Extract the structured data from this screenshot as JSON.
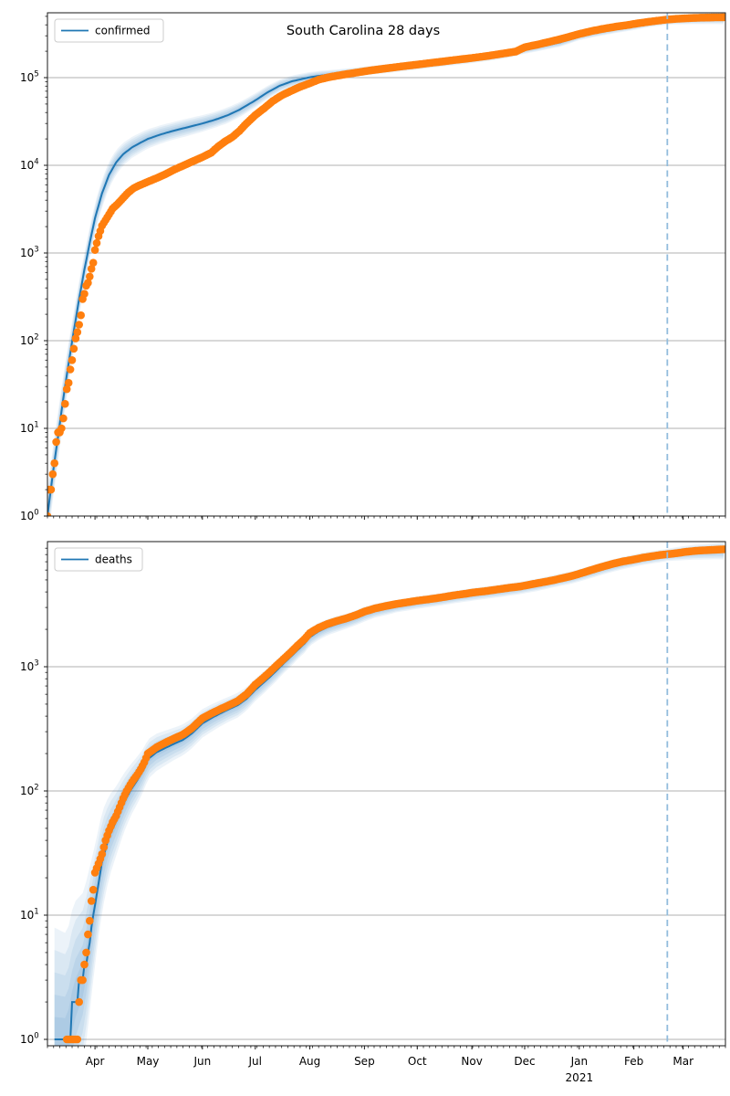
{
  "title": "South Carolina 28 days",
  "colors": {
    "model_line": "#1f77b4",
    "band_fill": "#1f77b4",
    "observed_dots": "#ff7f0e",
    "dashed_forecast_line": "#92bcdd",
    "gridline": "#b0b0b0",
    "spine": "#1a1a1a",
    "legend_border": "#cccccc"
  },
  "x_axis": {
    "day_zero": "2020-03-01",
    "range_days": [
      4,
      389
    ],
    "forecast_start": "2021-02-20",
    "forecast_horizon_days": 28,
    "year_sublabel": "2021",
    "ticks": [
      {
        "date": "2020-04-01",
        "label": "Apr"
      },
      {
        "date": "2020-05-01",
        "label": "May"
      },
      {
        "date": "2020-06-01",
        "label": "Jun"
      },
      {
        "date": "2020-07-01",
        "label": "Jul"
      },
      {
        "date": "2020-08-01",
        "label": "Aug"
      },
      {
        "date": "2020-09-01",
        "label": "Sep"
      },
      {
        "date": "2020-10-01",
        "label": "Oct"
      },
      {
        "date": "2020-11-01",
        "label": "Nov"
      },
      {
        "date": "2020-12-01",
        "label": "Dec"
      },
      {
        "date": "2021-01-01",
        "label": "Jan",
        "sublabel": "2021"
      },
      {
        "date": "2021-02-01",
        "label": "Feb"
      },
      {
        "date": "2021-03-01",
        "label": "Mar"
      }
    ]
  },
  "chart_data": [
    {
      "name": "confirmed",
      "legend": "confirmed",
      "type": "line+band+scatter",
      "yscale": "log",
      "ylim": [
        1,
        548000
      ],
      "y_ticks_exponents": [
        0,
        1,
        2,
        3,
        4,
        5
      ],
      "spread_unit": "log10 half-width of outer uncertainty band",
      "model_points": [
        [
          4,
          1,
          0.3
        ],
        [
          7,
          3,
          0.3
        ],
        [
          10,
          8,
          0.28
        ],
        [
          13,
          22,
          0.26
        ],
        [
          16,
          55,
          0.24
        ],
        [
          19,
          130,
          0.22
        ],
        [
          22,
          300,
          0.2
        ],
        [
          25,
          650,
          0.19
        ],
        [
          28,
          1300,
          0.18
        ],
        [
          31,
          2500,
          0.17
        ],
        [
          35,
          4800,
          0.16
        ],
        [
          39,
          7800,
          0.15
        ],
        [
          43,
          10800,
          0.14
        ],
        [
          47,
          13400,
          0.13
        ],
        [
          52,
          16000,
          0.12
        ],
        [
          57,
          18200,
          0.115
        ],
        [
          61,
          20000,
          0.11
        ],
        [
          68,
          22400,
          0.105
        ],
        [
          75,
          24600,
          0.1
        ],
        [
          82,
          26700,
          0.1
        ],
        [
          92,
          30000,
          0.095
        ],
        [
          99,
          33000,
          0.09
        ],
        [
          106,
          37000,
          0.09
        ],
        [
          113,
          43000,
          0.085
        ],
        [
          122,
          55000,
          0.08
        ],
        [
          129,
          68000,
          0.075
        ],
        [
          136,
          81000,
          0.07
        ],
        [
          143,
          91000,
          0.065
        ],
        [
          153,
          101000,
          0.06
        ],
        [
          160,
          106000,
          0.055
        ],
        [
          167,
          110000,
          0.05
        ],
        [
          174,
          113500,
          0.05
        ],
        [
          184,
          119000,
          0.05
        ],
        [
          194,
          125000,
          0.05
        ],
        [
          204,
          131500,
          0.05
        ],
        [
          214,
          139000,
          0.05
        ],
        [
          224,
          146500,
          0.05
        ],
        [
          234,
          154500,
          0.05
        ],
        [
          245,
          164000,
          0.05
        ],
        [
          255,
          174500,
          0.05
        ],
        [
          265,
          187500,
          0.05
        ],
        [
          275,
          210000,
          0.05
        ],
        [
          285,
          230000,
          0.05
        ],
        [
          295,
          252000,
          0.05
        ],
        [
          306,
          300000,
          0.05
        ],
        [
          316,
          330000,
          0.05
        ],
        [
          326,
          360000,
          0.05
        ],
        [
          337,
          392000,
          0.05
        ],
        [
          346,
          424000,
          0.05
        ],
        [
          356,
          450000,
          0.05
        ],
        [
          363,
          460000,
          0.055
        ],
        [
          371,
          468000,
          0.06
        ],
        [
          380,
          474000,
          0.065
        ],
        [
          389,
          478000,
          0.07
        ]
      ],
      "observed_points": [
        [
          4,
          1
        ],
        [
          5,
          2
        ],
        [
          6,
          2
        ],
        [
          7,
          3
        ],
        [
          8,
          4
        ],
        [
          9,
          7
        ],
        [
          10,
          9
        ],
        [
          11,
          9
        ],
        [
          12,
          10
        ],
        [
          13,
          13
        ],
        [
          14,
          19
        ],
        [
          15,
          28
        ],
        [
          16,
          33
        ],
        [
          17,
          47
        ],
        [
          18,
          60
        ],
        [
          19,
          81
        ],
        [
          20,
          106
        ],
        [
          21,
          125
        ],
        [
          22,
          152
        ],
        [
          23,
          195
        ],
        [
          24,
          298
        ],
        [
          25,
          342
        ],
        [
          26,
          424
        ],
        [
          27,
          456
        ],
        [
          28,
          539
        ],
        [
          29,
          660
        ],
        [
          30,
          774
        ],
        [
          31,
          1083
        ],
        [
          33,
          1554
        ],
        [
          35,
          2049
        ],
        [
          38,
          2552
        ],
        [
          41,
          3207
        ],
        [
          44,
          3656
        ],
        [
          47,
          4246
        ],
        [
          50,
          4917
        ],
        [
          53,
          5490
        ],
        [
          56,
          5885
        ],
        [
          61,
          6489
        ],
        [
          66,
          7142
        ],
        [
          71,
          7927
        ],
        [
          76,
          8942
        ],
        [
          81,
          9895
        ],
        [
          86,
          10988
        ],
        [
          92,
          12415
        ],
        [
          97,
          13916
        ],
        [
          101,
          16441
        ],
        [
          105,
          18795
        ],
        [
          109,
          21016
        ],
        [
          113,
          24661
        ],
        [
          117,
          30000
        ],
        [
          122,
          37314
        ],
        [
          127,
          44607
        ],
        [
          132,
          54109
        ],
        [
          137,
          62717
        ],
        [
          142,
          70054
        ],
        [
          147,
          77860
        ],
        [
          153,
          86432
        ],
        [
          158,
          94830
        ],
        [
          163,
          100500
        ],
        [
          168,
          104841
        ],
        [
          173,
          109000
        ],
        [
          180,
          114685
        ],
        [
          187,
          120700
        ],
        [
          194,
          125850
        ],
        [
          201,
          131100
        ],
        [
          208,
          136512
        ],
        [
          214,
          140952
        ],
        [
          221,
          146800
        ],
        [
          228,
          152500
        ],
        [
          235,
          158800
        ],
        [
          242,
          164846
        ],
        [
          249,
          171520
        ],
        [
          256,
          179500
        ],
        [
          263,
          188600
        ],
        [
          270,
          198800
        ],
        [
          275,
          222000
        ],
        [
          283,
          240000
        ],
        [
          291,
          262000
        ],
        [
          299,
          288000
        ],
        [
          306,
          315000
        ],
        [
          313,
          340000
        ],
        [
          320,
          362000
        ],
        [
          327,
          382000
        ],
        [
          334,
          400000
        ],
        [
          337,
          410000
        ],
        [
          344,
          430000
        ],
        [
          351,
          448000
        ],
        [
          356,
          460000
        ],
        [
          362,
          470000
        ],
        [
          368,
          477000
        ],
        [
          375,
          483000
        ],
        [
          384,
          487000
        ],
        [
          388,
          488000
        ]
      ]
    },
    {
      "name": "deaths",
      "legend": "deaths",
      "type": "line+band+scatter",
      "yscale": "log",
      "ylim": [
        0.9,
        10000
      ],
      "y_ticks_exponents": [
        0,
        1,
        2,
        3
      ],
      "median_integer_steps_below": 10,
      "spread_unit": "log10 half-width of outer uncertainty band",
      "model_points": [
        [
          8,
          1,
          0.9
        ],
        [
          15,
          1,
          0.85
        ],
        [
          19,
          2,
          0.8
        ],
        [
          24,
          3,
          0.7
        ],
        [
          27,
          5,
          0.62
        ],
        [
          29,
          8,
          0.55
        ],
        [
          31,
          12,
          0.48
        ],
        [
          35,
          27,
          0.4
        ],
        [
          39,
          43,
          0.33
        ],
        [
          43,
          57,
          0.28
        ],
        [
          47,
          78,
          0.24
        ],
        [
          51,
          100,
          0.21
        ],
        [
          55,
          122,
          0.19
        ],
        [
          59,
          152,
          0.17
        ],
        [
          61,
          180,
          0.16
        ],
        [
          66,
          205,
          0.15
        ],
        [
          71,
          222,
          0.14
        ],
        [
          76,
          240,
          0.13
        ],
        [
          81,
          258,
          0.125
        ],
        [
          86,
          290,
          0.12
        ],
        [
          92,
          350,
          0.115
        ],
        [
          97,
          385,
          0.11
        ],
        [
          102,
          420,
          0.105
        ],
        [
          107,
          455,
          0.1
        ],
        [
          112,
          490,
          0.1
        ],
        [
          117,
          550,
          0.095
        ],
        [
          122,
          650,
          0.09
        ],
        [
          126,
          730,
          0.09
        ],
        [
          130,
          820,
          0.085
        ],
        [
          134,
          930,
          0.085
        ],
        [
          138,
          1060,
          0.08
        ],
        [
          142,
          1200,
          0.08
        ],
        [
          146,
          1360,
          0.075
        ],
        [
          150,
          1540,
          0.075
        ],
        [
          153,
          1730,
          0.07
        ],
        [
          158,
          1930,
          0.07
        ],
        [
          163,
          2080,
          0.065
        ],
        [
          168,
          2200,
          0.065
        ],
        [
          174,
          2330,
          0.06
        ],
        [
          179,
          2470,
          0.06
        ],
        [
          184,
          2650,
          0.06
        ],
        [
          190,
          2820,
          0.055
        ],
        [
          196,
          2950,
          0.055
        ],
        [
          202,
          3070,
          0.05
        ],
        [
          208,
          3170,
          0.05
        ],
        [
          214,
          3280,
          0.05
        ],
        [
          221,
          3390,
          0.05
        ],
        [
          228,
          3500,
          0.05
        ],
        [
          235,
          3640,
          0.05
        ],
        [
          242,
          3760,
          0.05
        ],
        [
          252,
          3930,
          0.05
        ],
        [
          262,
          4100,
          0.05
        ],
        [
          272,
          4300,
          0.05
        ],
        [
          282,
          4560,
          0.05
        ],
        [
          292,
          4900,
          0.05
        ],
        [
          302,
          5250,
          0.05
        ],
        [
          311,
          5700,
          0.05
        ],
        [
          321,
          6300,
          0.05
        ],
        [
          331,
          6850,
          0.05
        ],
        [
          341,
          7350,
          0.05
        ],
        [
          351,
          7750,
          0.05
        ],
        [
          356,
          7950,
          0.05
        ],
        [
          363,
          8150,
          0.055
        ],
        [
          371,
          8350,
          0.06
        ],
        [
          381,
          8500,
          0.065
        ],
        [
          389,
          8600,
          0.07
        ]
      ],
      "observed_points": [
        [
          15,
          1
        ],
        [
          17,
          1
        ],
        [
          19,
          1
        ],
        [
          21,
          1
        ],
        [
          22,
          2
        ],
        [
          23,
          3
        ],
        [
          25,
          4
        ],
        [
          26,
          5
        ],
        [
          27,
          7
        ],
        [
          28,
          9
        ],
        [
          29,
          13
        ],
        [
          30,
          16
        ],
        [
          31,
          22
        ],
        [
          33,
          26
        ],
        [
          35,
          31
        ],
        [
          37,
          40
        ],
        [
          39,
          48
        ],
        [
          41,
          56
        ],
        [
          43,
          63
        ],
        [
          45,
          74
        ],
        [
          47,
          87
        ],
        [
          49,
          100
        ],
        [
          51,
          112
        ],
        [
          53,
          124
        ],
        [
          55,
          135
        ],
        [
          57,
          150
        ],
        [
          59,
          170
        ],
        [
          61,
          200
        ],
        [
          66,
          225
        ],
        [
          71,
          245
        ],
        [
          76,
          265
        ],
        [
          81,
          285
        ],
        [
          86,
          320
        ],
        [
          92,
          385
        ],
        [
          97,
          420
        ],
        [
          102,
          455
        ],
        [
          107,
          490
        ],
        [
          112,
          530
        ],
        [
          117,
          600
        ],
        [
          122,
          717
        ],
        [
          126,
          800
        ],
        [
          130,
          900
        ],
        [
          134,
          1020
        ],
        [
          138,
          1150
        ],
        [
          142,
          1300
        ],
        [
          146,
          1480
        ],
        [
          150,
          1670
        ],
        [
          153,
          1870
        ],
        [
          158,
          2060
        ],
        [
          163,
          2210
        ],
        [
          168,
          2330
        ],
        [
          174,
          2460
        ],
        [
          179,
          2600
        ],
        [
          184,
          2780
        ],
        [
          190,
          2950
        ],
        [
          196,
          3080
        ],
        [
          202,
          3200
        ],
        [
          208,
          3300
        ],
        [
          214,
          3400
        ],
        [
          221,
          3500
        ],
        [
          228,
          3620
        ],
        [
          235,
          3760
        ],
        [
          242,
          3880
        ],
        [
          245,
          3950
        ],
        [
          252,
          4050
        ],
        [
          259,
          4180
        ],
        [
          266,
          4320
        ],
        [
          272,
          4420
        ],
        [
          275,
          4500
        ],
        [
          282,
          4700
        ],
        [
          289,
          4900
        ],
        [
          296,
          5150
        ],
        [
          301,
          5350
        ],
        [
          306,
          5600
        ],
        [
          311,
          5900
        ],
        [
          316,
          6200
        ],
        [
          321,
          6500
        ],
        [
          326,
          6800
        ],
        [
          331,
          7050
        ],
        [
          337,
          7300
        ],
        [
          342,
          7550
        ],
        [
          347,
          7750
        ],
        [
          352,
          7950
        ],
        [
          356,
          8050
        ],
        [
          361,
          8200
        ],
        [
          366,
          8400
        ],
        [
          371,
          8550
        ],
        [
          376,
          8650
        ],
        [
          381,
          8720
        ],
        [
          385,
          8780
        ],
        [
          388,
          8820
        ]
      ]
    }
  ]
}
